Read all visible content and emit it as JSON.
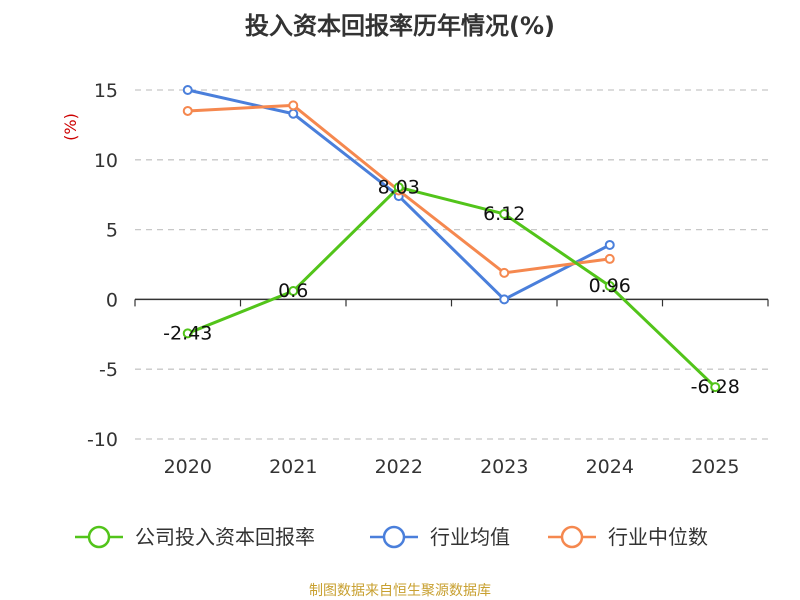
{
  "source": "制图数据来自恒生聚源数据库",
  "chart_data": {
    "type": "line",
    "title": "投入资本回报率历年情况(%)",
    "ylabel": "(%)",
    "categories": [
      "2020",
      "2021",
      "2022",
      "2023",
      "2024",
      "2025"
    ],
    "ylim": [
      -10,
      15
    ],
    "yticks": [
      -10,
      -5,
      0,
      5,
      10,
      15
    ],
    "grid": true,
    "legend_position": "bottom",
    "series": [
      {
        "name": "公司投入资本回报率",
        "color": "#52c41a",
        "values": [
          -2.43,
          0.6,
          8.03,
          6.12,
          0.96,
          -6.28
        ],
        "labels": [
          "-2.43",
          "0.6",
          "8.03",
          "6.12",
          "0.96",
          "-6.28"
        ]
      },
      {
        "name": "行业均值",
        "color": "#4a7fdb",
        "values": [
          15.0,
          13.3,
          7.4,
          0.0,
          3.9,
          null
        ]
      },
      {
        "name": "行业中位数",
        "color": "#f5884f",
        "values": [
          13.5,
          13.9,
          7.8,
          1.9,
          2.9,
          null
        ]
      }
    ]
  }
}
